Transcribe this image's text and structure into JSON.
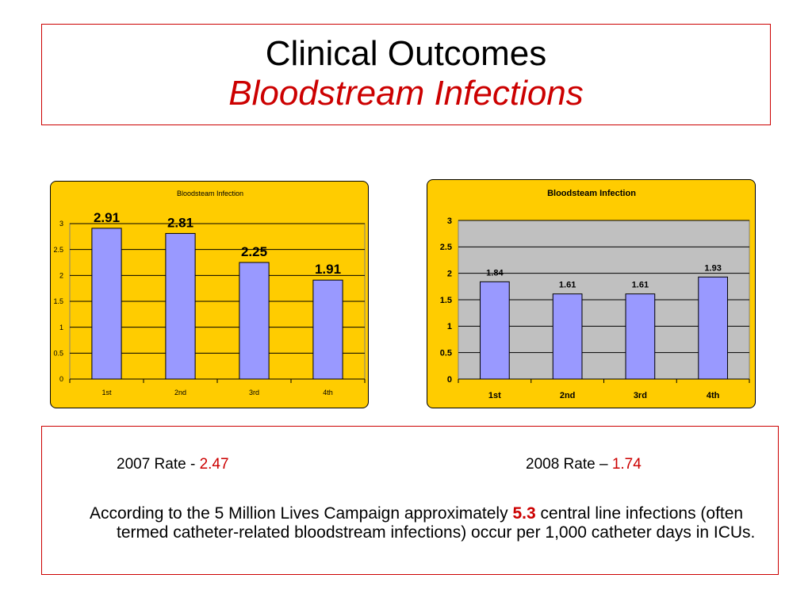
{
  "title": {
    "main": "Clinical Outcomes",
    "sub": "Bloodstream Infections"
  },
  "colors": {
    "panel": "#ffcc00",
    "plot": "#c0c0c0",
    "bar": "#9999ff",
    "accent": "#cc0000"
  },
  "chart_data": [
    {
      "type": "bar",
      "title": "Bloodsteam Infection",
      "categories": [
        "1st",
        "2nd",
        "3rd",
        "4th"
      ],
      "series": [
        {
          "values": [
            2.91,
            2.81,
            2.25,
            1.91
          ]
        }
      ],
      "data_labels": [
        "2.91",
        "2.81",
        "2.25",
        "1.91"
      ],
      "ylim": [
        0,
        3
      ],
      "yticks": [
        "0",
        "0.5",
        "1",
        "1.5",
        "2",
        "2.5",
        "3"
      ],
      "grid": true,
      "legend": "none"
    },
    {
      "type": "bar",
      "title": "Bloodsteam  Infection",
      "categories": [
        "1st",
        "2nd",
        "3rd",
        "4th"
      ],
      "series": [
        {
          "values": [
            1.84,
            1.61,
            1.61,
            1.93
          ]
        }
      ],
      "data_labels": [
        "1.84",
        "1.61",
        "1.61",
        "1.93"
      ],
      "ylim": [
        0,
        3
      ],
      "yticks": [
        "0",
        "0.5",
        "1",
        "1.5",
        "2",
        "2.5",
        "3"
      ],
      "grid": true,
      "legend": "none"
    }
  ],
  "rates": {
    "r2007": {
      "label": "2007  Rate - ",
      "value": "2.47"
    },
    "r2008": {
      "label": "2008 Rate – ",
      "value": "1.74"
    }
  },
  "paragraph": {
    "before": "According to the 5 Million Lives Campaign approximately ",
    "highlight": "5.3",
    "after": " central line infections (often termed catheter-related bloodstream infections) occur per 1,000 catheter days in ICUs."
  }
}
